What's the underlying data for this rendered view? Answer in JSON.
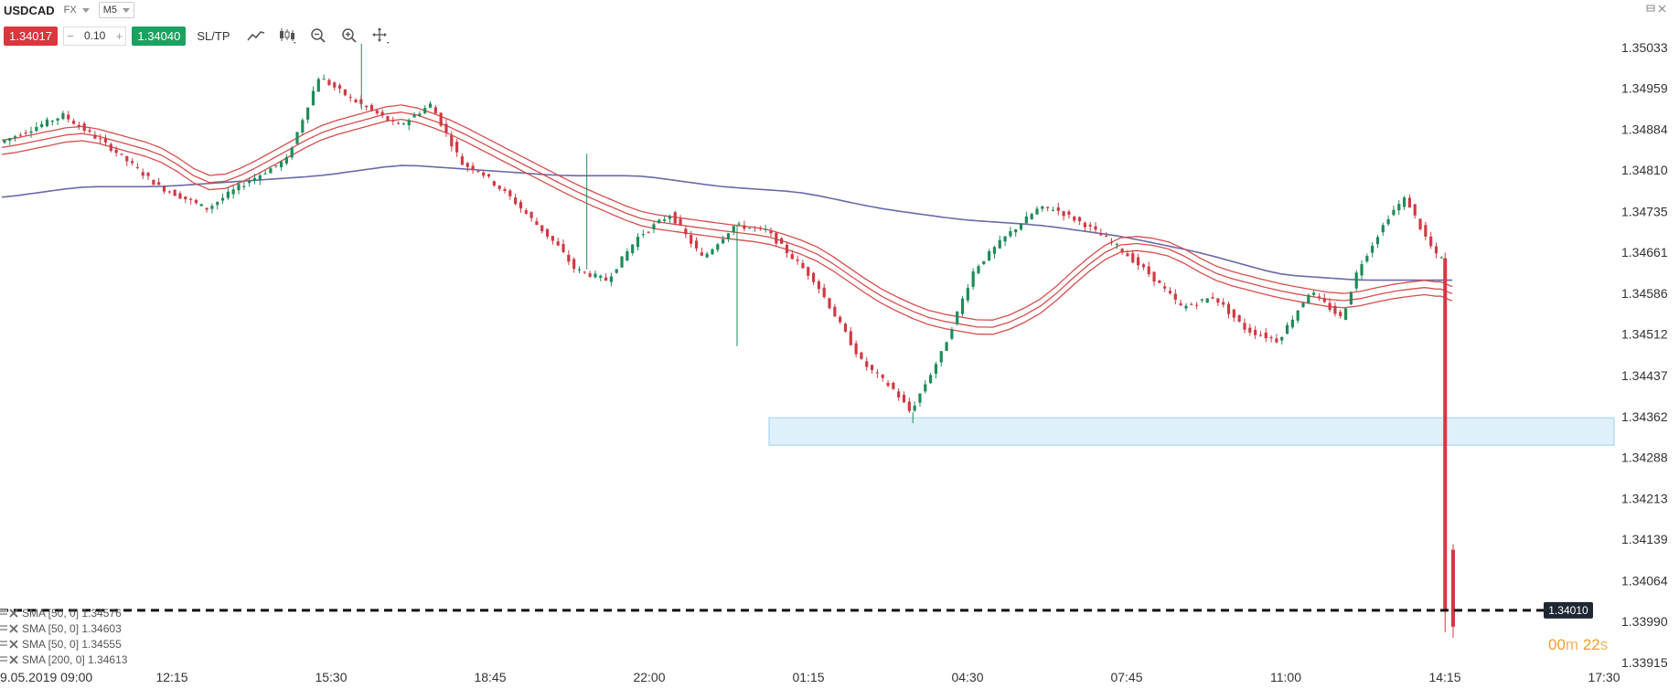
{
  "header": {
    "symbol": "USDCAD",
    "market": "FX",
    "timeframe": "M5",
    "sell_price": "1.34017",
    "buy_price": "1.34040",
    "quantity": "0.10",
    "minus": "−",
    "plus": "+",
    "sltp_label": "SL/TP"
  },
  "toolbar_icons": [
    "line-chart-icon",
    "candles-icon",
    "zoom-out-icon",
    "zoom-in-icon",
    "move-icon"
  ],
  "legend": [
    {
      "label": "SMA [50, 0] 1.34576"
    },
    {
      "label": "SMA [50, 0] 1.34603"
    },
    {
      "label": "SMA [50, 0] 1.34555"
    },
    {
      "label": "SMA [200, 0] 1.34613"
    }
  ],
  "countdown": {
    "minutes": "00",
    "m_unit": "m",
    "seconds": "22",
    "s_unit": "s"
  },
  "colors": {
    "bull": "#1e8c5a",
    "bear": "#d03a44",
    "sma50": "#d64d4d",
    "sma200": "#6a6aa8",
    "zone": "#dff0fb",
    "zone_border": "#9fd0ee"
  },
  "chart_data": {
    "type": "candlestick",
    "x_tick_labels": [
      "9.05.2019 09:00",
      "12:15",
      "15:30",
      "18:45",
      "22:00",
      "01:15",
      "04:30",
      "07:45",
      "11:00",
      "14:15",
      "17:30"
    ],
    "y_tick_labels": [
      "1.35033",
      "1.34959",
      "1.34884",
      "1.34810",
      "1.34735",
      "1.34661",
      "1.34586",
      "1.34512",
      "1.34437",
      "1.34362",
      "1.34288",
      "1.34213",
      "1.34139",
      "1.34064",
      "1.33990",
      "1.33915"
    ],
    "y_range": [
      1.33915,
      1.35033
    ],
    "current_price_label": "1.34010",
    "current_price": 1.3401,
    "support_zone": {
      "low": 1.3431,
      "high": 1.3436,
      "from_index": 48
    },
    "candles_count": 95,
    "path": [
      [
        0,
        1.3486
      ],
      [
        4,
        1.3491
      ],
      [
        7,
        1.3485
      ],
      [
        10,
        1.3478
      ],
      [
        13,
        1.3474
      ],
      [
        15,
        1.3478
      ],
      [
        18,
        1.3483
      ],
      [
        20,
        1.3498
      ],
      [
        22,
        1.3494
      ],
      [
        25,
        1.3489
      ],
      [
        27,
        1.3493
      ],
      [
        29,
        1.3482
      ],
      [
        30,
        1.3481
      ],
      [
        32,
        1.3476
      ],
      [
        35,
        1.3467
      ],
      [
        36,
        1.3463
      ],
      [
        38,
        1.3461
      ],
      [
        40,
        1.3469
      ],
      [
        42,
        1.3473
      ],
      [
        44,
        1.3465
      ],
      [
        46,
        1.3471
      ],
      [
        48,
        1.347
      ],
      [
        51,
        1.3461
      ],
      [
        52,
        1.3456
      ],
      [
        54,
        1.3446
      ],
      [
        56,
        1.3441
      ],
      [
        57,
        1.3437
      ],
      [
        59,
        1.3448
      ],
      [
        61,
        1.3463
      ],
      [
        63,
        1.3469
      ],
      [
        65,
        1.3474
      ],
      [
        66,
        1.3474
      ],
      [
        68,
        1.3471
      ],
      [
        70,
        1.3467
      ],
      [
        72,
        1.3462
      ],
      [
        74,
        1.3456
      ],
      [
        76,
        1.3458
      ],
      [
        78,
        1.3452
      ],
      [
        80,
        1.345
      ],
      [
        82,
        1.3459
      ],
      [
        84,
        1.3454
      ],
      [
        85,
        1.3463
      ],
      [
        86,
        1.3468
      ],
      [
        87,
        1.3473
      ],
      [
        88,
        1.3476
      ],
      [
        89,
        1.347
      ],
      [
        90,
        1.3465
      ]
    ],
    "spike_candle": {
      "index": 90.3,
      "open": 1.3465,
      "close": 1.3401,
      "high": 1.3466,
      "low": 1.3397
    },
    "last_candle": {
      "index": 90.8,
      "open": 1.3412,
      "close": 1.3398,
      "high": 1.3413,
      "low": 1.3396
    },
    "sma50_mid": [
      [
        0,
        1.3485
      ],
      [
        5,
        1.3488
      ],
      [
        10,
        1.3484
      ],
      [
        13,
        1.3478
      ],
      [
        15,
        1.348
      ],
      [
        20,
        1.3488
      ],
      [
        25,
        1.3492
      ],
      [
        28,
        1.3489
      ],
      [
        32,
        1.3483
      ],
      [
        36,
        1.3477
      ],
      [
        40,
        1.3472
      ],
      [
        45,
        1.347
      ],
      [
        48,
        1.3469
      ],
      [
        51,
        1.3466
      ],
      [
        55,
        1.3458
      ],
      [
        58,
        1.3454
      ],
      [
        62,
        1.3452
      ],
      [
        65,
        1.3456
      ],
      [
        68,
        1.3464
      ],
      [
        70,
        1.3468
      ],
      [
        73,
        1.3467
      ],
      [
        76,
        1.3462
      ],
      [
        80,
        1.3459
      ],
      [
        84,
        1.3457
      ],
      [
        87,
        1.3459
      ],
      [
        90,
        1.346
      ],
      [
        90.8,
        1.3458
      ]
    ],
    "sma50_offset": 0.00013,
    "sma200": [
      [
        0,
        1.3476
      ],
      [
        5,
        1.3478
      ],
      [
        10,
        1.3478
      ],
      [
        15,
        1.3479
      ],
      [
        20,
        1.348
      ],
      [
        25,
        1.3482
      ],
      [
        30,
        1.3481
      ],
      [
        35,
        1.348
      ],
      [
        40,
        1.348
      ],
      [
        45,
        1.3478
      ],
      [
        50,
        1.3477
      ],
      [
        55,
        1.3474
      ],
      [
        60,
        1.3472
      ],
      [
        65,
        1.3471
      ],
      [
        70,
        1.3469
      ],
      [
        75,
        1.3466
      ],
      [
        80,
        1.3462
      ],
      [
        85,
        1.3461
      ],
      [
        90.8,
        1.3461
      ]
    ]
  }
}
